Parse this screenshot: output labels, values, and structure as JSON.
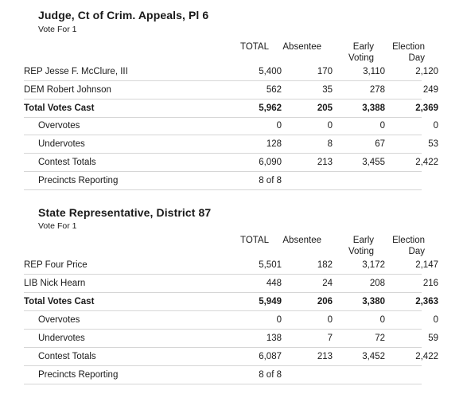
{
  "races": [
    {
      "title": "Judge, Ct of Crim. Appeals, Pl 6",
      "vote_for": "Vote For 1",
      "headers": {
        "total": "TOTAL",
        "absentee": "Absentee",
        "early_1": "Early",
        "early_2": "Voting",
        "election_1": "Election",
        "election_2": "Day"
      },
      "rows": [
        {
          "name": "REP Jesse F. McClure, III",
          "total": "5,400",
          "absentee": "170",
          "early": "3,110",
          "election": "2,120"
        },
        {
          "name": "DEM Robert Johnson",
          "total": "562",
          "absentee": "35",
          "early": "278",
          "election": "249"
        },
        {
          "name": "Total Votes Cast",
          "total": "5,962",
          "absentee": "205",
          "early": "3,388",
          "election": "2,369"
        },
        {
          "name": "Overvotes",
          "total": "0",
          "absentee": "0",
          "early": "0",
          "election": "0"
        },
        {
          "name": "Undervotes",
          "total": "128",
          "absentee": "8",
          "early": "67",
          "election": "53"
        },
        {
          "name": "Contest Totals",
          "total": "6,090",
          "absentee": "213",
          "early": "3,455",
          "election": "2,422"
        },
        {
          "name": "Precincts Reporting",
          "total": "8 of 8",
          "absentee": "",
          "early": "",
          "election": ""
        }
      ]
    },
    {
      "title": "State Representative, District 87",
      "vote_for": "Vote For 1",
      "headers": {
        "total": "TOTAL",
        "absentee": "Absentee",
        "early_1": "Early",
        "early_2": "Voting",
        "election_1": "Election",
        "election_2": "Day"
      },
      "rows": [
        {
          "name": "REP Four Price",
          "total": "5,501",
          "absentee": "182",
          "early": "3,172",
          "election": "2,147"
        },
        {
          "name": "LIB Nick Hearn",
          "total": "448",
          "absentee": "24",
          "early": "208",
          "election": "216"
        },
        {
          "name": "Total Votes Cast",
          "total": "5,949",
          "absentee": "206",
          "early": "3,380",
          "election": "2,363"
        },
        {
          "name": "Overvotes",
          "total": "0",
          "absentee": "0",
          "early": "0",
          "election": "0"
        },
        {
          "name": "Undervotes",
          "total": "138",
          "absentee": "7",
          "early": "72",
          "election": "59"
        },
        {
          "name": "Contest Totals",
          "total": "6,087",
          "absentee": "213",
          "early": "3,452",
          "election": "2,422"
        },
        {
          "name": "Precincts Reporting",
          "total": "8 of 8",
          "absentee": "",
          "early": "",
          "election": ""
        }
      ]
    }
  ]
}
